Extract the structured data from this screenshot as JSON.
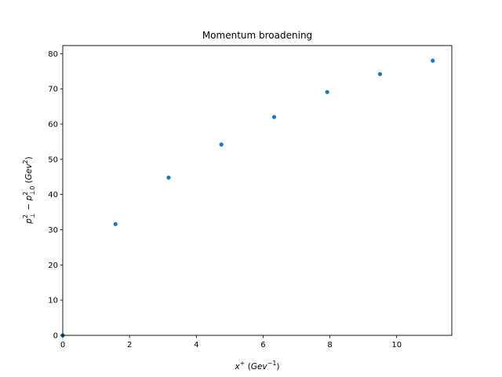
{
  "chart_data": {
    "type": "scatter",
    "title": "Momentum broadening",
    "xlabel": {
      "base": "x",
      "sup": "+",
      "unit_open": " (",
      "unit": "Gev",
      "unit_sup": "−1",
      "unit_close": ")"
    },
    "ylabel": {
      "p1": "p",
      "p1_sup": "2",
      "p1_sub": "⊥",
      "minus": " − ",
      "p2": "p",
      "p2_sup": "2",
      "p2_sub": "⊥0",
      "unit_open": " (",
      "unit": "Gev",
      "unit_sup": "2",
      "unit_close": ")"
    },
    "xlim": [
      0,
      11.65
    ],
    "ylim": [
      0,
      82.3
    ],
    "xticks": [
      0,
      2,
      4,
      6,
      8,
      10
    ],
    "yticks": [
      0,
      10,
      20,
      30,
      40,
      50,
      60,
      70,
      80
    ],
    "grid": false,
    "color": "#1f77b4",
    "points": [
      {
        "x": 0.0,
        "y": 0.0
      },
      {
        "x": 1.58,
        "y": 31.6
      },
      {
        "x": 3.17,
        "y": 44.8
      },
      {
        "x": 4.75,
        "y": 54.2
      },
      {
        "x": 6.33,
        "y": 62.0
      },
      {
        "x": 7.92,
        "y": 69.1
      },
      {
        "x": 9.5,
        "y": 74.2
      },
      {
        "x": 11.08,
        "y": 78.0
      }
    ]
  }
}
